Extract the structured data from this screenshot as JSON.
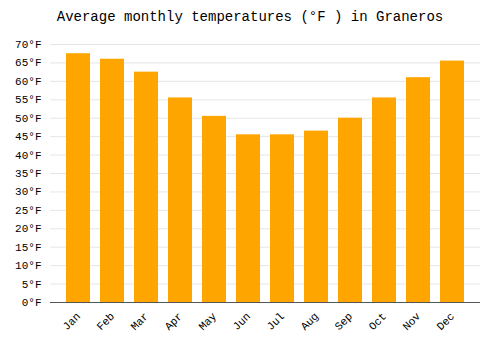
{
  "chart_data": {
    "type": "bar",
    "title": "Average monthly temperatures (°F ) in Graneros",
    "categories": [
      "Jan",
      "Feb",
      "Mar",
      "Apr",
      "May",
      "Jun",
      "Jul",
      "Aug",
      "Sep",
      "Oct",
      "Nov",
      "Dec"
    ],
    "values": [
      67.5,
      66.0,
      62.5,
      55.5,
      50.5,
      45.5,
      45.5,
      46.5,
      50.0,
      55.5,
      61.0,
      65.5
    ],
    "color": "#FFA500",
    "ylim": [
      0,
      70
    ],
    "yticks": [
      {
        "value": 0,
        "label": "0°F"
      },
      {
        "value": 5,
        "label": "5°F"
      },
      {
        "value": 10,
        "label": "10°F"
      },
      {
        "value": 15,
        "label": "15°F"
      },
      {
        "value": 20,
        "label": "20°F"
      },
      {
        "value": 25,
        "label": "25°F"
      },
      {
        "value": 30,
        "label": "30°F"
      },
      {
        "value": 35,
        "label": "35°F"
      },
      {
        "value": 40,
        "label": "40°F"
      },
      {
        "value": 45,
        "label": "45°F"
      },
      {
        "value": 50,
        "label": "50°F"
      },
      {
        "value": 55,
        "label": "55°F"
      },
      {
        "value": 60,
        "label": "60°F"
      },
      {
        "value": 65,
        "label": "65°F"
      },
      {
        "value": 70,
        "label": "70°F"
      }
    ],
    "grid": true
  }
}
